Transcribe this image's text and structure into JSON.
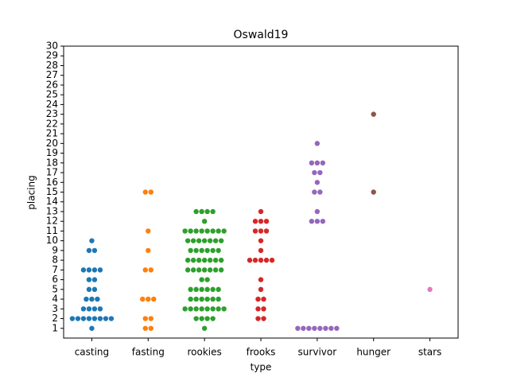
{
  "chart_data": {
    "type": "swarm",
    "title": "Oswald19",
    "x_label": "type",
    "y_label": "placing",
    "categories": [
      "casting",
      "fasting",
      "rookies",
      "frooks",
      "survivor",
      "hunger",
      "stars"
    ],
    "colors": [
      "#1f77b4",
      "#ff7f0e",
      "#2ca02c",
      "#d62728",
      "#9467bd",
      "#8c564b",
      "#e377c2"
    ],
    "values": [
      [
        10,
        9,
        9,
        7,
        7,
        7,
        7,
        6,
        6,
        5,
        5,
        4,
        4,
        4,
        3,
        3,
        3,
        3,
        2,
        2,
        2,
        2,
        2,
        2,
        2,
        2,
        1
      ],
      [
        15,
        15,
        11,
        9,
        7,
        7,
        4,
        4,
        4,
        2,
        2,
        1,
        1
      ],
      [
        13,
        13,
        13,
        13,
        12,
        11,
        11,
        11,
        11,
        11,
        11,
        11,
        11,
        10,
        10,
        10,
        10,
        10,
        10,
        10,
        9,
        9,
        9,
        9,
        9,
        9,
        8,
        8,
        8,
        8,
        8,
        8,
        8,
        7,
        7,
        7,
        7,
        7,
        7,
        7,
        6,
        6,
        5,
        5,
        5,
        5,
        5,
        5,
        4,
        4,
        4,
        4,
        4,
        4,
        3,
        3,
        3,
        3,
        3,
        3,
        3,
        3,
        2,
        2,
        2,
        2,
        1
      ],
      [
        13,
        12,
        12,
        12,
        11,
        11,
        11,
        10,
        9,
        8,
        8,
        8,
        8,
        8,
        6,
        5,
        4,
        4,
        3,
        3,
        2,
        2
      ],
      [
        20,
        18,
        18,
        18,
        17,
        17,
        16,
        15,
        15,
        13,
        12,
        12,
        12,
        1,
        1,
        1,
        1,
        1,
        1,
        1,
        1
      ],
      [
        23,
        15
      ],
      [
        5
      ]
    ],
    "ylim": [
      0,
      30
    ],
    "yticks": [
      1,
      2,
      3,
      4,
      5,
      6,
      7,
      8,
      9,
      10,
      11,
      12,
      13,
      14,
      15,
      16,
      17,
      18,
      19,
      20,
      21,
      22,
      23,
      24,
      25,
      26,
      27,
      28,
      29,
      30
    ]
  }
}
